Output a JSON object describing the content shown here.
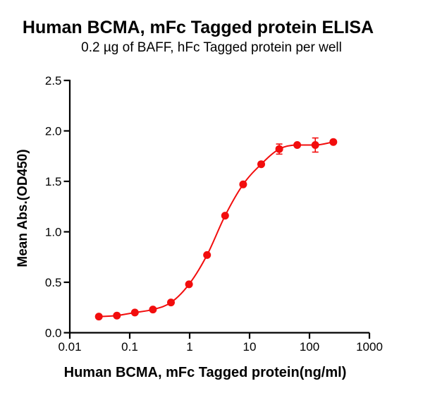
{
  "chart_data": {
    "type": "scatter",
    "title": "Human BCMA, mFc Tagged protein ELISA",
    "subtitle": "0.2 µg of BAFF, hFc Tagged protein per well",
    "xlabel": "Human BCMA, mFc Tagged protein(ng/ml)",
    "ylabel": "Mean Abs.(OD450)",
    "x_scale": "log10",
    "xlim": [
      0.01,
      1000
    ],
    "ylim": [
      0.0,
      2.5
    ],
    "x_ticks": [
      0.01,
      0.1,
      1,
      10,
      100,
      1000
    ],
    "x_tick_labels": [
      "0.01",
      "0.1",
      "1",
      "10",
      "100",
      "1000"
    ],
    "y_ticks": [
      0.0,
      0.5,
      1.0,
      1.5,
      2.0,
      2.5
    ],
    "y_tick_labels": [
      "0.0",
      "0.5",
      "1.0",
      "1.5",
      "2.0",
      "2.5"
    ],
    "grid": false,
    "legend_position": "none",
    "series": [
      {
        "name": "Human BCMA, mFc Tagged protein",
        "marker": "filled-circle",
        "color": "#f20d0d",
        "x": [
          0.0305,
          0.061,
          0.122,
          0.244,
          0.488,
          0.977,
          1.953,
          3.906,
          7.813,
          15.625,
          31.25,
          62.5,
          125,
          250
        ],
        "y": [
          0.16,
          0.17,
          0.2,
          0.23,
          0.3,
          0.48,
          0.77,
          1.16,
          1.47,
          1.67,
          1.82,
          1.86,
          1.86,
          1.89
        ],
        "y_err": [
          0,
          0,
          0,
          0,
          0,
          0,
          0,
          0,
          0,
          0,
          0.05,
          0,
          0.07,
          0
        ]
      }
    ]
  },
  "colors": {
    "curve": "#f20d0d",
    "axis": "#000000",
    "text": "#000000",
    "background": "#ffffff"
  }
}
